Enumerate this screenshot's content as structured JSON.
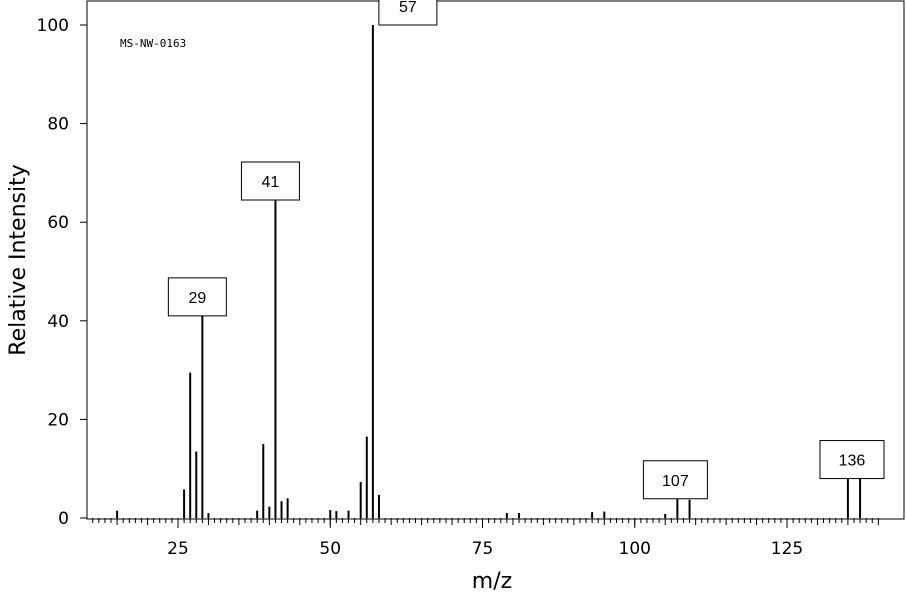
{
  "chart_data": {
    "type": "bar",
    "title": "",
    "spectrum_id": "MS-NW-0163",
    "xlabel": "m/z",
    "ylabel": "Relative Intensity",
    "xlim": [
      10,
      140
    ],
    "ylim": [
      0,
      100
    ],
    "x_ticks": [
      25,
      50,
      75,
      100,
      125
    ],
    "y_ticks": [
      0,
      20,
      40,
      60,
      80,
      100
    ],
    "grid": false,
    "series": [
      {
        "peaks": [
          {
            "x": 15,
            "y": 1.5
          },
          {
            "x": 26,
            "y": 5.8
          },
          {
            "x": 27,
            "y": 29.5
          },
          {
            "x": 28,
            "y": 13.5
          },
          {
            "x": 29,
            "y": 41
          },
          {
            "x": 30,
            "y": 1.0
          },
          {
            "x": 38,
            "y": 1.5
          },
          {
            "x": 39,
            "y": 15
          },
          {
            "x": 40,
            "y": 2.3
          },
          {
            "x": 41,
            "y": 64.5
          },
          {
            "x": 42,
            "y": 3.4
          },
          {
            "x": 43,
            "y": 4.0
          },
          {
            "x": 50,
            "y": 1.6
          },
          {
            "x": 51,
            "y": 1.4
          },
          {
            "x": 53,
            "y": 1.5
          },
          {
            "x": 55,
            "y": 7.3
          },
          {
            "x": 56,
            "y": 16.5
          },
          {
            "x": 57,
            "y": 100
          },
          {
            "x": 58,
            "y": 4.7
          },
          {
            "x": 79,
            "y": 1.0
          },
          {
            "x": 81,
            "y": 1.0
          },
          {
            "x": 93,
            "y": 1.2
          },
          {
            "x": 95,
            "y": 1.3
          },
          {
            "x": 105,
            "y": 0.8
          },
          {
            "x": 107,
            "y": 3.9
          },
          {
            "x": 109,
            "y": 3.7
          },
          {
            "x": 135,
            "y": 8.0
          },
          {
            "x": 137,
            "y": 8.0
          }
        ]
      }
    ],
    "annotations": [
      {
        "text": "29",
        "x": 29
      },
      {
        "text": "41",
        "x": 41
      },
      {
        "text": "57",
        "x": 57
      },
      {
        "text": "107",
        "x": 107
      },
      {
        "text": "136",
        "x": 136
      }
    ]
  }
}
